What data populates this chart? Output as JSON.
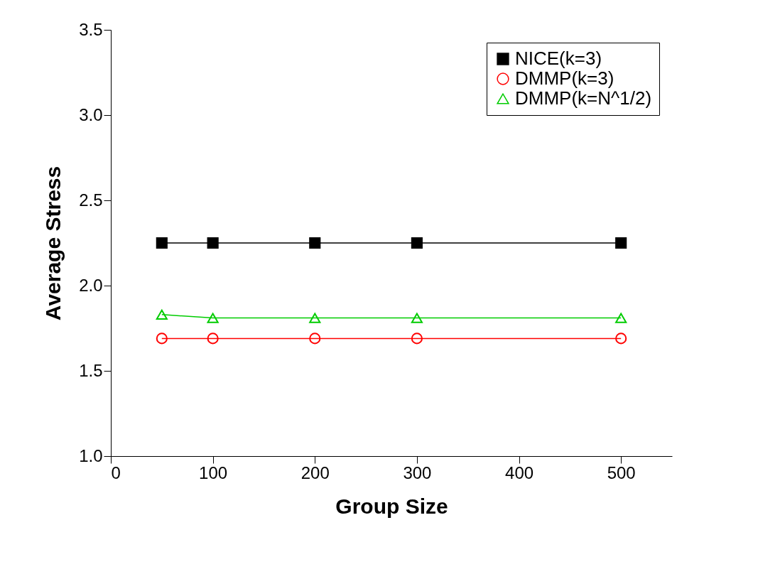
{
  "chart_data": {
    "type": "line",
    "xlabel": "Group Size",
    "ylabel": "Average Stress",
    "x": [
      50,
      100,
      200,
      300,
      500
    ],
    "series": [
      {
        "name": "NICE(k=3)",
        "color": "#000000",
        "marker": "square",
        "values": [
          2.25,
          2.25,
          2.25,
          2.25,
          2.25
        ]
      },
      {
        "name": "DMMP(k=3)",
        "color": "#ff0000",
        "marker": "circle",
        "values": [
          1.69,
          1.69,
          1.69,
          1.69,
          1.69
        ]
      },
      {
        "name": "DMMP(k=N^1/2)",
        "color": "#00cc00",
        "marker": "triangle",
        "values": [
          1.83,
          1.81,
          1.81,
          1.81,
          1.81
        ]
      }
    ],
    "xlim": [
      0,
      550
    ],
    "xticks": [
      0,
      100,
      200,
      300,
      400,
      500
    ],
    "ylim": [
      1.0,
      3.5
    ],
    "yticks": [
      {
        "value": 1.0,
        "label": "1.0"
      },
      {
        "value": 1.5,
        "label": "1.5"
      },
      {
        "value": 2.0,
        "label": "2.0"
      },
      {
        "value": 2.5,
        "label": "2.5"
      },
      {
        "value": 3.0,
        "label": "3.0"
      },
      {
        "value": 3.5,
        "label": "3.5"
      }
    ],
    "grid": false,
    "legend": "top right"
  }
}
